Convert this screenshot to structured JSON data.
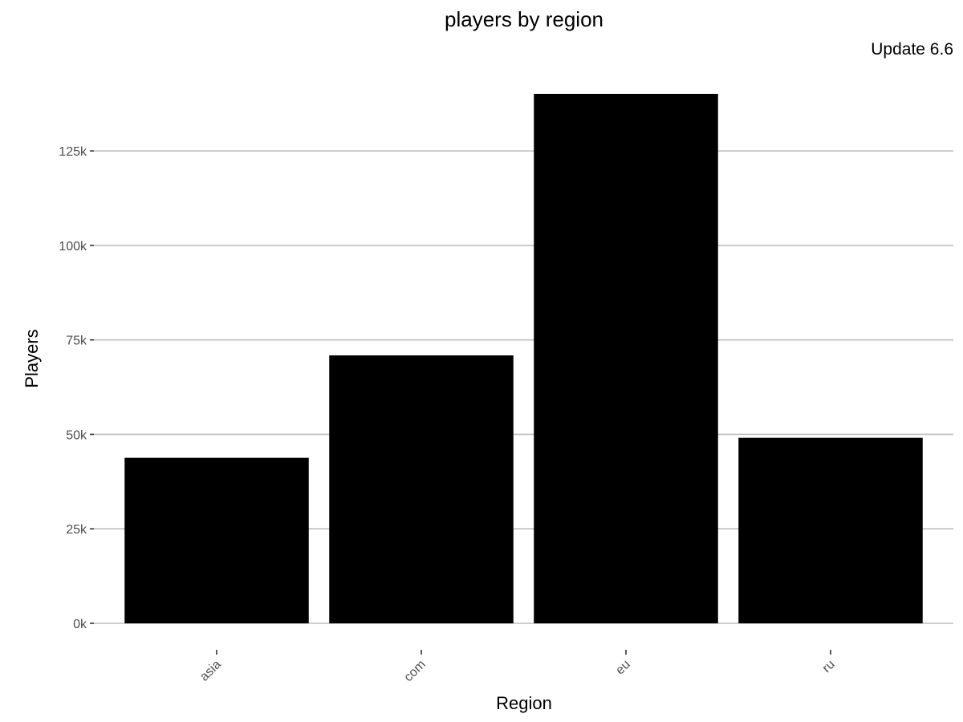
{
  "chart_data": {
    "type": "bar",
    "title": "players by region",
    "subtitle": "Update 6.6",
    "xlabel": "Region",
    "ylabel": "Players",
    "categories": [
      "asia",
      "com",
      "eu",
      "ru"
    ],
    "values": [
      43800,
      70900,
      140100,
      49100
    ],
    "ylim": [
      0,
      140100
    ],
    "y_ticks": [
      0,
      25000,
      50000,
      75000,
      100000,
      125000
    ],
    "y_tick_labels": [
      "0k",
      "25k",
      "50k",
      "75k",
      "100k",
      "125k"
    ],
    "grid": true,
    "legend": "none",
    "bar_color": "#000000",
    "grid_color": "#bdbdbd"
  }
}
